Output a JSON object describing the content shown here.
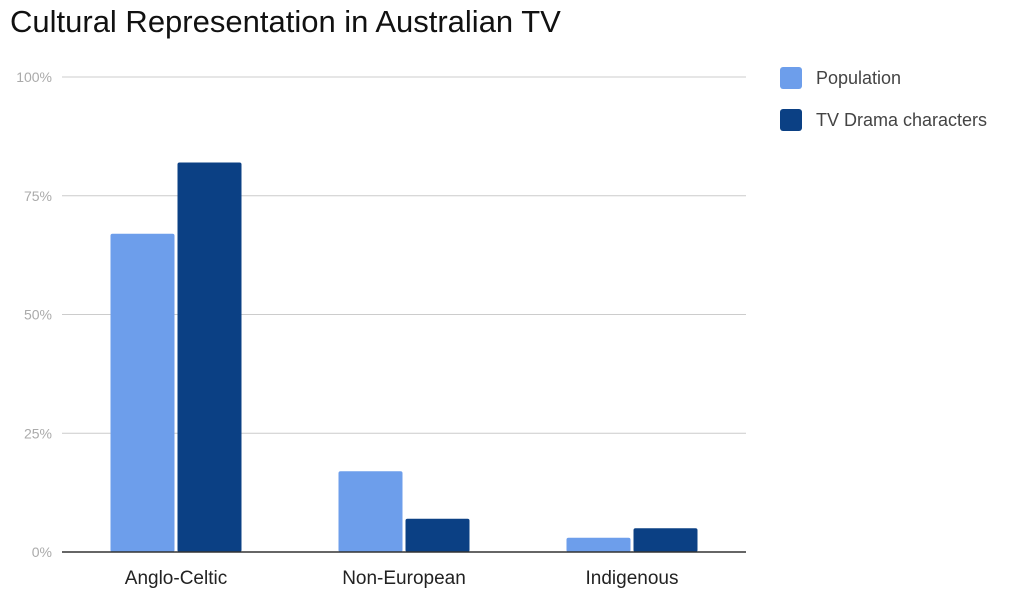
{
  "chart_data": {
    "type": "bar",
    "title": "Cultural Representation in Australian TV",
    "categories": [
      "Anglo-Celtic",
      "Non-European",
      "Indigenous"
    ],
    "series": [
      {
        "name": "Population",
        "values": [
          67,
          17,
          3
        ],
        "color": "#6d9eeb"
      },
      {
        "name": "TV Drama characters",
        "values": [
          82,
          7,
          5
        ],
        "color": "#0b4084"
      }
    ],
    "ylim": [
      0,
      100
    ],
    "yticks": [
      "0%",
      "25%",
      "50%",
      "75%",
      "100%"
    ],
    "ytick_values": [
      0,
      25,
      50,
      75,
      100
    ],
    "grid": true,
    "legend_position": "right"
  }
}
